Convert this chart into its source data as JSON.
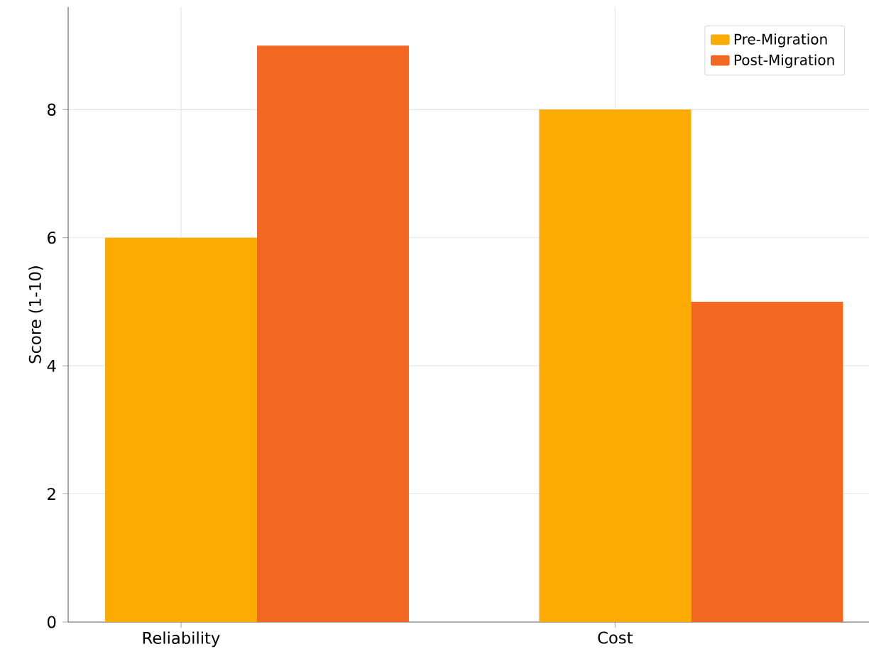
{
  "chart_data": {
    "type": "bar",
    "ylabel": "Score (1-10)",
    "categories": [
      "Reliability",
      "Cost"
    ],
    "series": [
      {
        "name": "Pre-Migration",
        "color": "#fcab05",
        "values": [
          6,
          8
        ]
      },
      {
        "name": "Post-Migration",
        "color": "#f26823",
        "values": [
          9,
          5
        ]
      }
    ],
    "ylim": [
      0,
      9.6
    ],
    "yticks": [
      0,
      2,
      4,
      6,
      8
    ],
    "grid": true,
    "legend": "top right"
  }
}
